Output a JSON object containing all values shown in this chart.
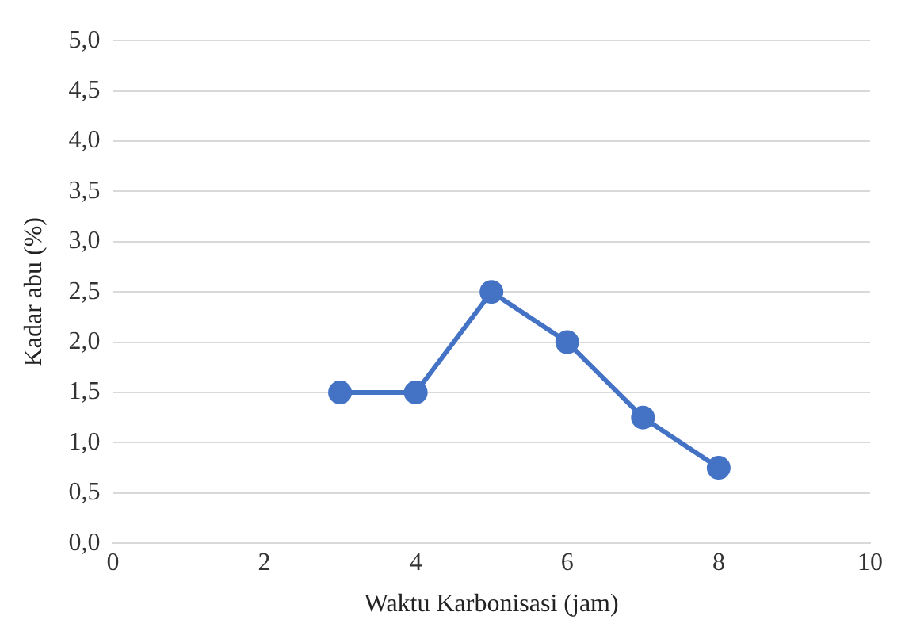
{
  "chart_data": {
    "type": "line",
    "xlabel": "Waktu Karbonisasi (jam)",
    "ylabel": "Kadar abu (%)",
    "x": [
      3,
      4,
      5,
      6,
      7,
      8
    ],
    "series": [
      {
        "color": "#4472c4",
        "values": [
          1.5,
          1.5,
          2.5,
          2.0,
          1.25,
          0.75
        ]
      }
    ],
    "xlim": [
      0,
      10
    ],
    "xticks": [
      0,
      2,
      4,
      6,
      8,
      10
    ],
    "ylim": [
      0,
      5
    ],
    "yticks": [
      {
        "value": 0,
        "label": "0,0"
      },
      {
        "value": 0.5,
        "label": "0,5"
      },
      {
        "value": 1,
        "label": "1,0"
      },
      {
        "value": 1.5,
        "label": "1,5"
      },
      {
        "value": 2,
        "label": "2,0"
      },
      {
        "value": 2.5,
        "label": "2,5"
      },
      {
        "value": 3,
        "label": "3,0"
      },
      {
        "value": 3.5,
        "label": "3,5"
      },
      {
        "value": 4,
        "label": "4,0"
      },
      {
        "value": 4.5,
        "label": "4,5"
      },
      {
        "value": 5,
        "label": "5,0"
      }
    ],
    "grid": "y",
    "marker": "circle",
    "line_style": "solid",
    "legend": false
  }
}
